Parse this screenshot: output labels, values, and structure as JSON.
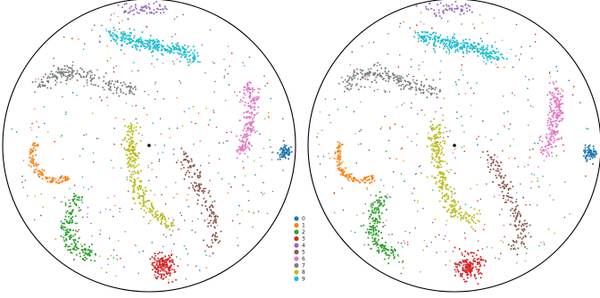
{
  "chart_data": {
    "type": "scatter",
    "grid": false,
    "axes_visible": false,
    "boundary": "unit circle",
    "xlim": [
      -1,
      1
    ],
    "ylim": [
      -1,
      1
    ],
    "legend_position": "between panels, lower",
    "colors": {
      "0": "#1f77b4",
      "1": "#ff7f0e",
      "2": "#2ca02c",
      "3": "#d62728",
      "4": "#9467bd",
      "5": "#8c564b",
      "6": "#e377c2",
      "7": "#7f7f7f",
      "8": "#bcbd22",
      "9": "#17becf"
    },
    "legend": [
      "0",
      "1",
      "2",
      "3",
      "4",
      "5",
      "6",
      "7",
      "8",
      "9"
    ],
    "panels": [
      {
        "center_marker": [
          0.0,
          0.0
        ],
        "clusters": [
          {
            "label": "0",
            "count": 70,
            "shape": "blob",
            "a": [
              0.93,
              -0.05
            ],
            "radius": 0.045
          },
          {
            "label": "1",
            "count": 110,
            "shape": "arc",
            "center": [
              -0.63,
              -0.07
            ],
            "r": 0.17,
            "from_deg": 150,
            "to_deg": 300
          },
          {
            "label": "2",
            "count": 180,
            "shape": "path",
            "points": [
              [
                -0.48,
                -0.35
              ],
              [
                -0.55,
                -0.48
              ],
              [
                -0.57,
                -0.6
              ],
              [
                -0.5,
                -0.7
              ],
              [
                -0.4,
                -0.75
              ]
            ]
          },
          {
            "label": "3",
            "count": 160,
            "shape": "blob",
            "a": [
              0.1,
              -0.83
            ],
            "radius": 0.075
          },
          {
            "label": "4",
            "count": 60,
            "shape": "path",
            "points": [
              [
                -0.2,
                0.95
              ],
              [
                -0.12,
                0.91
              ],
              [
                -0.02,
                0.94
              ],
              [
                0.1,
                0.93
              ]
            ]
          },
          {
            "label": "5",
            "count": 150,
            "shape": "path",
            "points": [
              [
                0.24,
                -0.05
              ],
              [
                0.34,
                -0.3
              ],
              [
                0.43,
                -0.48
              ],
              [
                0.45,
                -0.62
              ],
              [
                0.42,
                -0.7
              ]
            ]
          },
          {
            "label": "6",
            "count": 200,
            "shape": "path",
            "points": [
              [
                0.68,
                0.42
              ],
              [
                0.7,
                0.25
              ],
              [
                0.68,
                0.08
              ],
              [
                0.62,
                -0.05
              ]
            ]
          },
          {
            "label": "7",
            "count": 200,
            "shape": "path",
            "points": [
              [
                -0.75,
                0.4
              ],
              [
                -0.6,
                0.5
              ],
              [
                -0.42,
                0.47
              ],
              [
                -0.25,
                0.4
              ],
              [
                -0.1,
                0.38
              ]
            ]
          },
          {
            "label": "8",
            "count": 280,
            "shape": "path",
            "points": [
              [
                -0.12,
                0.15
              ],
              [
                -0.12,
                -0.05
              ],
              [
                -0.08,
                -0.28
              ],
              [
                0.0,
                -0.45
              ],
              [
                0.15,
                -0.53
              ]
            ]
          },
          {
            "label": "9",
            "count": 280,
            "shape": "path",
            "points": [
              [
                -0.25,
                0.75
              ],
              [
                -0.05,
                0.7
              ],
              [
                0.15,
                0.66
              ],
              [
                0.32,
                0.6
              ]
            ]
          }
        ]
      },
      {
        "center_marker": [
          0.0,
          0.0
        ],
        "clusters": [
          {
            "label": "0",
            "count": 70,
            "shape": "blob",
            "a": [
              0.93,
              -0.05
            ],
            "radius": 0.045
          },
          {
            "label": "1",
            "count": 110,
            "shape": "arc",
            "center": [
              -0.63,
              -0.07
            ],
            "r": 0.17,
            "from_deg": 150,
            "to_deg": 300
          },
          {
            "label": "2",
            "count": 180,
            "shape": "path",
            "points": [
              [
                -0.48,
                -0.35
              ],
              [
                -0.55,
                -0.48
              ],
              [
                -0.57,
                -0.6
              ],
              [
                -0.5,
                -0.7
              ],
              [
                -0.4,
                -0.75
              ]
            ]
          },
          {
            "label": "3",
            "count": 160,
            "shape": "blob",
            "a": [
              0.1,
              -0.83
            ],
            "radius": 0.075
          },
          {
            "label": "4",
            "count": 60,
            "shape": "path",
            "points": [
              [
                -0.2,
                0.95
              ],
              [
                -0.12,
                0.91
              ],
              [
                -0.02,
                0.94
              ],
              [
                0.1,
                0.93
              ]
            ]
          },
          {
            "label": "5",
            "count": 150,
            "shape": "path",
            "points": [
              [
                0.24,
                -0.05
              ],
              [
                0.34,
                -0.3
              ],
              [
                0.43,
                -0.48
              ],
              [
                0.45,
                -0.62
              ],
              [
                0.42,
                -0.7
              ]
            ]
          },
          {
            "label": "6",
            "count": 200,
            "shape": "path",
            "points": [
              [
                0.68,
                0.42
              ],
              [
                0.7,
                0.25
              ],
              [
                0.68,
                0.08
              ],
              [
                0.62,
                -0.05
              ]
            ]
          },
          {
            "label": "7",
            "count": 200,
            "shape": "path",
            "points": [
              [
                -0.75,
                0.4
              ],
              [
                -0.6,
                0.5
              ],
              [
                -0.42,
                0.47
              ],
              [
                -0.25,
                0.4
              ],
              [
                -0.1,
                0.38
              ]
            ]
          },
          {
            "label": "8",
            "count": 280,
            "shape": "path",
            "points": [
              [
                -0.12,
                0.15
              ],
              [
                -0.12,
                -0.05
              ],
              [
                -0.08,
                -0.28
              ],
              [
                0.0,
                -0.45
              ],
              [
                0.15,
                -0.53
              ]
            ]
          },
          {
            "label": "9",
            "count": 280,
            "shape": "path",
            "points": [
              [
                -0.25,
                0.75
              ],
              [
                -0.05,
                0.7
              ],
              [
                0.15,
                0.66
              ],
              [
                0.32,
                0.6
              ]
            ]
          }
        ]
      }
    ],
    "noise_points_per_panel": 420
  }
}
